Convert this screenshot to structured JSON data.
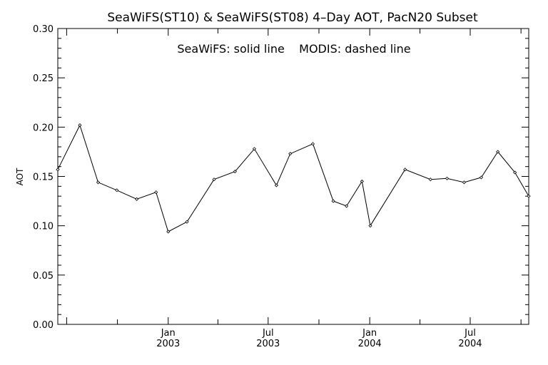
{
  "chart_data": {
    "type": "line",
    "title": "SeaWiFS(ST10) & SeaWiFS(ST08) 4–Day AOT, PacN20 Subset",
    "annotation": "SeaWiFS: solid line    MODIS: dashed line",
    "xlabel": "",
    "ylabel": "AOT",
    "ylim": [
      0.0,
      0.3
    ],
    "yticks": [
      "0.00",
      "0.05",
      "0.10",
      "0.15",
      "0.20",
      "0.25",
      "0.30"
    ],
    "xlim": [
      "2002-06-15",
      "2004-10-15"
    ],
    "xtick_labels": [
      {
        "date": "2003-01-01",
        "line1": "Jan",
        "line2": "2003"
      },
      {
        "date": "2003-07-01",
        "line1": "Jul",
        "line2": "2003"
      },
      {
        "date": "2004-01-01",
        "line1": "Jan",
        "line2": "2004"
      },
      {
        "date": "2004-07-01",
        "line1": "Jul",
        "line2": "2004"
      }
    ],
    "grid": false,
    "series": [
      {
        "style": "solid",
        "points": [
          {
            "x": "2002-06-15",
            "y": 0.157
          },
          {
            "x": "2002-07-25",
            "y": 0.202
          },
          {
            "x": "2002-08-27",
            "y": 0.144
          },
          {
            "x": "2002-09-30",
            "y": 0.136
          },
          {
            "x": "2002-11-05",
            "y": 0.127
          },
          {
            "x": "2002-12-10",
            "y": 0.134
          },
          {
            "x": "2003-01-01",
            "y": 0.094
          },
          {
            "x": "2003-02-04",
            "y": 0.104
          },
          {
            "x": "2003-03-25",
            "y": 0.147
          },
          {
            "x": "2003-05-02",
            "y": 0.155
          },
          {
            "x": "2003-06-06",
            "y": 0.178
          },
          {
            "x": "2003-07-16",
            "y": 0.141
          },
          {
            "x": "2003-08-10",
            "y": 0.173
          },
          {
            "x": "2003-09-20",
            "y": 0.183
          },
          {
            "x": "2003-10-27",
            "y": 0.125
          },
          {
            "x": "2003-11-20",
            "y": 0.12
          },
          {
            "x": "2003-12-18",
            "y": 0.145
          },
          {
            "x": "2004-01-02",
            "y": 0.1
          },
          {
            "x": "2004-03-05",
            "y": 0.157
          },
          {
            "x": "2004-04-20",
            "y": 0.147
          },
          {
            "x": "2004-05-20",
            "y": 0.148
          },
          {
            "x": "2004-06-20",
            "y": 0.144
          },
          {
            "x": "2004-07-21",
            "y": 0.149
          },
          {
            "x": "2004-08-20",
            "y": 0.175
          },
          {
            "x": "2004-09-20",
            "y": 0.154
          },
          {
            "x": "2004-10-15",
            "y": 0.13
          }
        ]
      }
    ]
  }
}
